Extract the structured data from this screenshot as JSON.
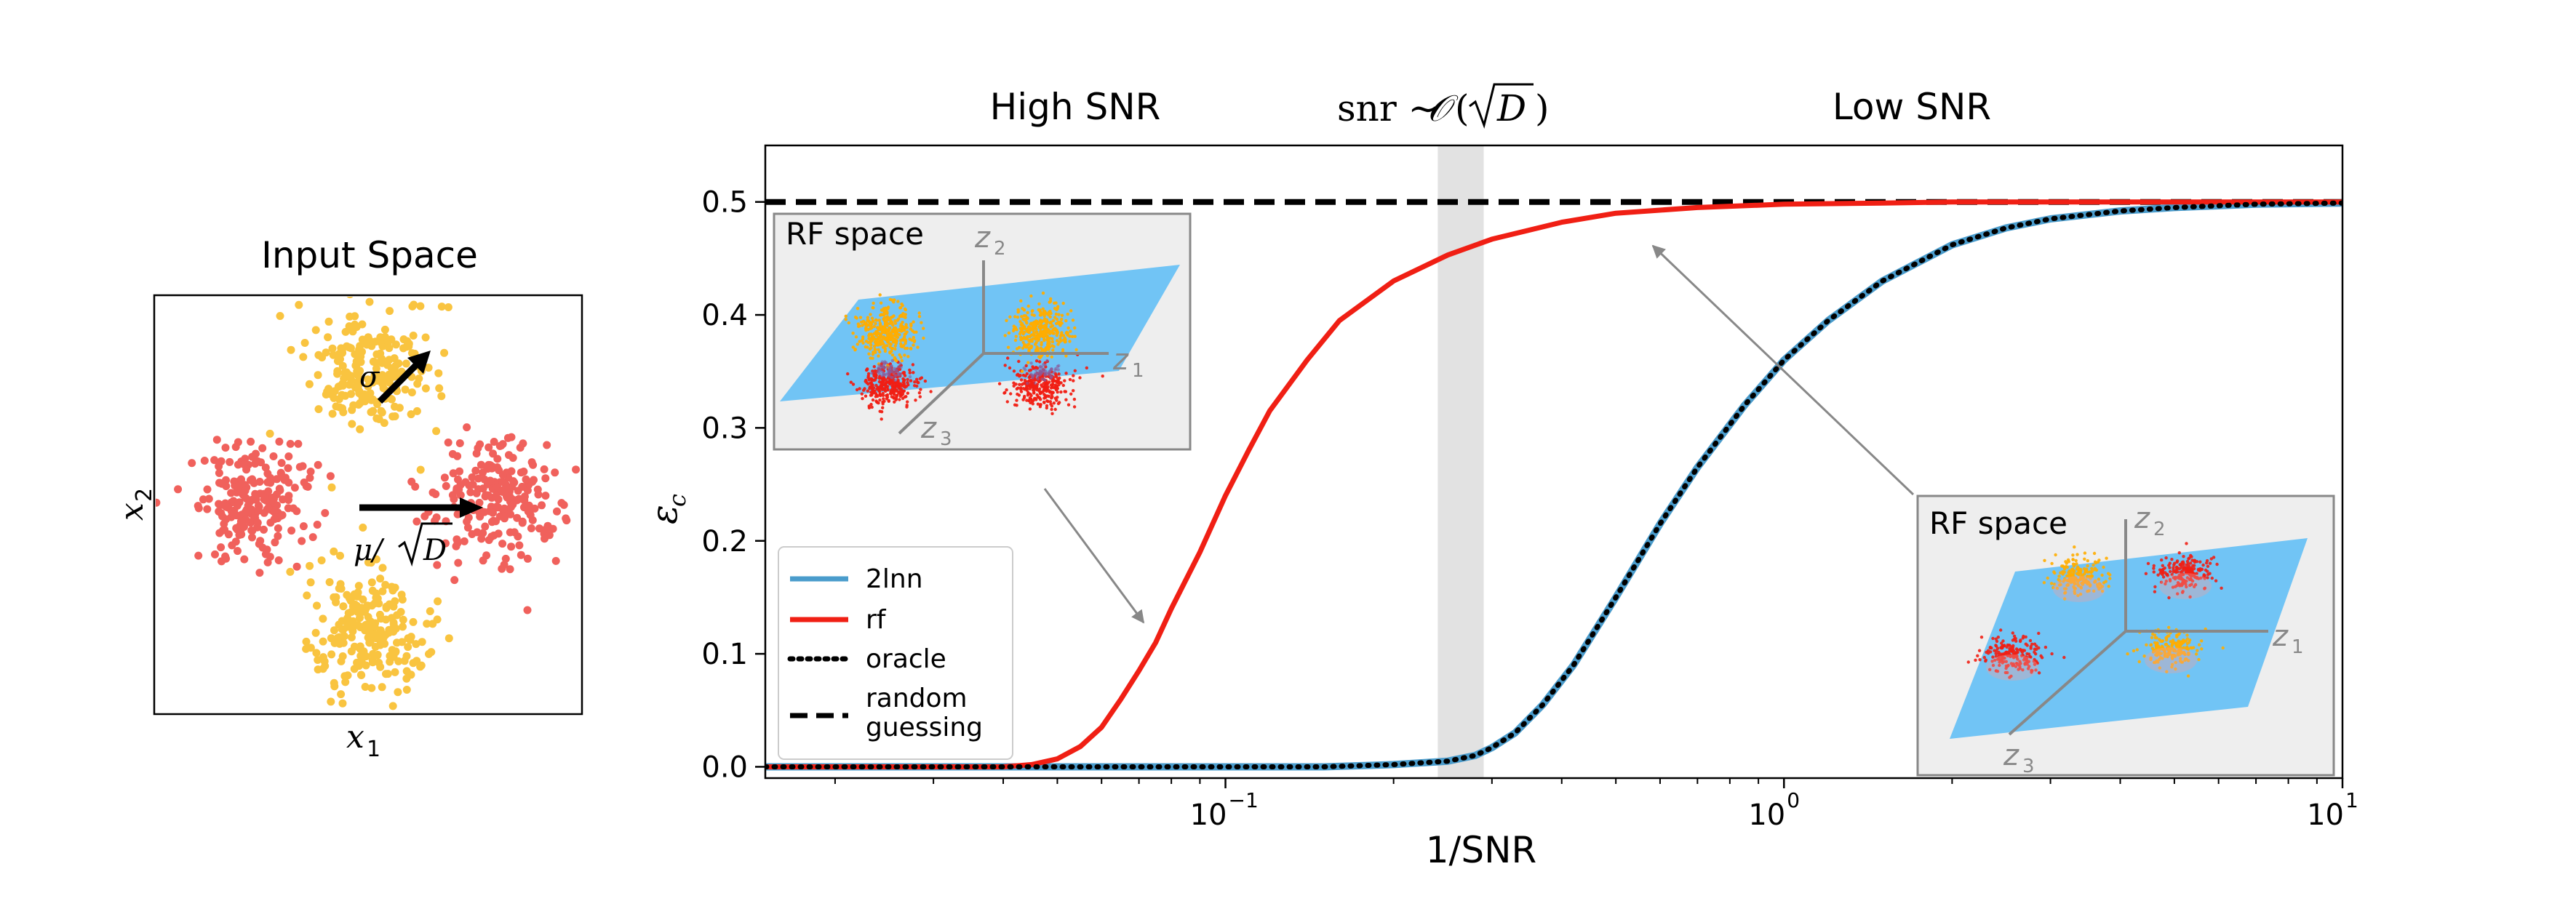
{
  "colors": {
    "red": "#f01f14",
    "orange": "#ffad00",
    "blue_line": "#4a9ccc",
    "light_red": "#f0615c",
    "light_yellow": "#f9c440",
    "plane": "#71c4f5",
    "inset_bg": "#eeeeee",
    "band": "#dddddd"
  },
  "left_panel": {
    "title": "Input Space",
    "xlabel_sym": "x",
    "xlabel_sub": "1",
    "ylabel_sym": "x",
    "ylabel_sub": "2",
    "sigma_label": "σ",
    "mu_label_prefix": "μ/",
    "mu_label_root": "D"
  },
  "regime_labels": {
    "high": "High SNR",
    "mid_prefix": "snr ∼ ",
    "mid_script": "𝒪",
    "mid_root": "D",
    "low": "Low SNR"
  },
  "insets": [
    {
      "title": "RF space",
      "axes": [
        {
          "sym": "z",
          "sub": "2"
        },
        {
          "sym": "z",
          "sub": "1"
        },
        {
          "sym": "z",
          "sub": "3"
        }
      ]
    },
    {
      "title": "RF space",
      "axes": [
        {
          "sym": "z",
          "sub": "2"
        },
        {
          "sym": "z",
          "sub": "1"
        },
        {
          "sym": "z",
          "sub": "3"
        }
      ]
    }
  ],
  "chart_data": {
    "type": "line",
    "xlabel": "1/SNR",
    "ylabel_sym": "ε",
    "ylabel_sub": "c",
    "xscale": "log",
    "xlim": [
      0.015,
      10
    ],
    "ylim": [
      -0.01,
      0.55
    ],
    "xticks": [
      {
        "value": 0.1,
        "base": "10",
        "exp": "−1"
      },
      {
        "value": 1,
        "base": "10",
        "exp": "0"
      },
      {
        "value": 10,
        "base": "10",
        "exp": "1"
      }
    ],
    "yticks": [
      {
        "value": 0.0,
        "label": "0.0"
      },
      {
        "value": 0.1,
        "label": "0.1"
      },
      {
        "value": 0.2,
        "label": "0.2"
      },
      {
        "value": 0.3,
        "label": "0.3"
      },
      {
        "value": 0.4,
        "label": "0.4"
      },
      {
        "value": 0.5,
        "label": "0.5"
      }
    ],
    "shaded_band": [
      0.24,
      0.29
    ],
    "legend_placement": "lower-left",
    "series": [
      {
        "name": "2lnn",
        "key": "twolnn",
        "style": "solid",
        "x": [
          0.015,
          0.1,
          0.15,
          0.2,
          0.25,
          0.28,
          0.3,
          0.33,
          0.37,
          0.42,
          0.5,
          0.6,
          0.7,
          0.85,
          1.0,
          1.2,
          1.5,
          2.0,
          2.5,
          3.0,
          4.0,
          5.0,
          7.0,
          10.0
        ],
        "y": [
          0.0,
          0.0,
          0.0,
          0.002,
          0.005,
          0.01,
          0.017,
          0.03,
          0.055,
          0.09,
          0.15,
          0.215,
          0.265,
          0.32,
          0.36,
          0.395,
          0.43,
          0.462,
          0.477,
          0.485,
          0.492,
          0.495,
          0.498,
          0.499
        ]
      },
      {
        "name": "rf",
        "key": "rf",
        "style": "solid",
        "x": [
          0.015,
          0.04,
          0.045,
          0.05,
          0.055,
          0.06,
          0.065,
          0.07,
          0.075,
          0.08,
          0.09,
          0.1,
          0.11,
          0.12,
          0.14,
          0.16,
          0.2,
          0.25,
          0.3,
          0.4,
          0.5,
          0.7,
          1.0,
          1.5,
          2.0,
          3.0,
          5.0,
          10.0
        ],
        "y": [
          0.0,
          0.0,
          0.002,
          0.007,
          0.018,
          0.035,
          0.06,
          0.085,
          0.11,
          0.14,
          0.19,
          0.24,
          0.28,
          0.315,
          0.36,
          0.395,
          0.43,
          0.453,
          0.467,
          0.482,
          0.49,
          0.495,
          0.498,
          0.499,
          0.5,
          0.5,
          0.5,
          0.5
        ]
      },
      {
        "name": "oracle",
        "key": "oracle",
        "style": "dotted",
        "x": [
          0.015,
          0.1,
          0.15,
          0.2,
          0.25,
          0.28,
          0.3,
          0.33,
          0.37,
          0.42,
          0.5,
          0.6,
          0.7,
          0.85,
          1.0,
          1.2,
          1.5,
          2.0,
          2.5,
          3.0,
          4.0,
          5.0,
          7.0,
          10.0
        ],
        "y": [
          0.0,
          0.0,
          0.0,
          0.002,
          0.005,
          0.01,
          0.017,
          0.03,
          0.055,
          0.09,
          0.15,
          0.215,
          0.265,
          0.32,
          0.36,
          0.395,
          0.43,
          0.462,
          0.477,
          0.485,
          0.492,
          0.495,
          0.498,
          0.499
        ]
      },
      {
        "name": "random\nguessing",
        "key": "random",
        "style": "dashed",
        "x": [
          0.015,
          10.0
        ],
        "y": [
          0.5,
          0.5
        ]
      }
    ]
  }
}
